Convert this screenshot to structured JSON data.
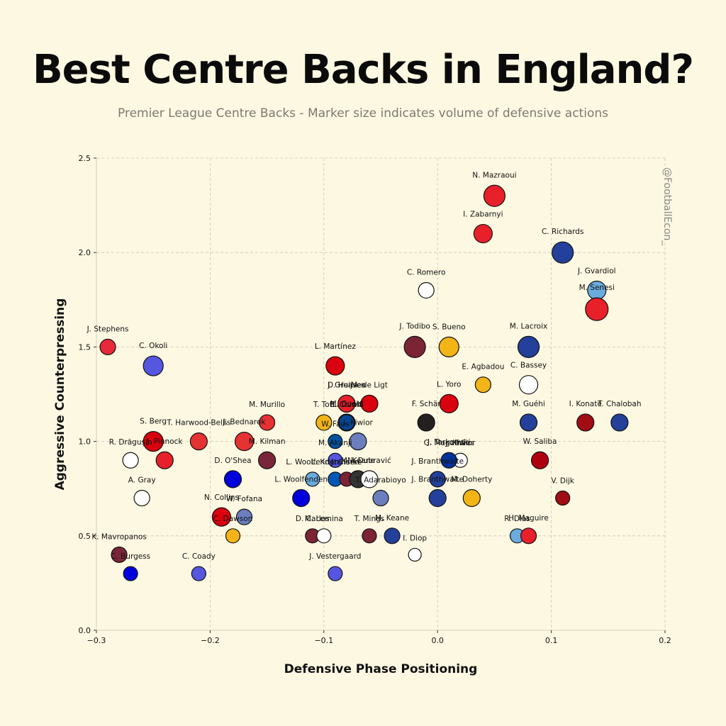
{
  "header": {
    "title": "Best Centre Backs in England?",
    "subtitle": "Premier League Centre Backs - Marker size indicates volume of defensive actions"
  },
  "watermark": "@FootballEcon_",
  "chart_data": {
    "type": "scatter",
    "xlabel": "Defensive Phase Positioning",
    "ylabel": "Aggressive Counterpressing",
    "xlim": [
      -0.3,
      0.2
    ],
    "ylim": [
      0.0,
      2.5
    ],
    "xticks": [
      "−0.3",
      "−0.2",
      "−0.1",
      "0.0",
      "0.1",
      "0.2"
    ],
    "xtick_values": [
      -0.3,
      -0.2,
      -0.1,
      0.0,
      0.1,
      0.2
    ],
    "yticks": [
      "0.0",
      "0.5",
      "1.0",
      "1.5",
      "2.0",
      "2.5"
    ],
    "ytick_values": [
      0.0,
      0.5,
      1.0,
      1.5,
      2.0,
      2.5
    ],
    "grid": true,
    "size_encoding": "volume of defensive actions",
    "points": [
      {
        "label": "N. Mazraoui",
        "x": 0.05,
        "y": 2.3,
        "size": 15,
        "color": "#e8202a"
      },
      {
        "label": "I. Zabarnyi",
        "x": 0.04,
        "y": 2.1,
        "size": 13,
        "color": "#e8202a"
      },
      {
        "label": "C. Richards",
        "x": 0.11,
        "y": 2.0,
        "size": 15,
        "color": "#23409a"
      },
      {
        "label": "C. Romero",
        "x": -0.01,
        "y": 1.8,
        "size": 11,
        "color": "#ffffff"
      },
      {
        "label": "J. Gvardiol",
        "x": 0.14,
        "y": 1.8,
        "size": 13,
        "color": "#6cabdd"
      },
      {
        "label": "M. Senesi",
        "x": 0.14,
        "y": 1.7,
        "size": 16,
        "color": "#e8202a"
      },
      {
        "label": "J. Stephens",
        "x": -0.29,
        "y": 1.5,
        "size": 11,
        "color": "#e7293a"
      },
      {
        "label": "C. Okoli",
        "x": -0.25,
        "y": 1.4,
        "size": 14,
        "color": "#5656e0"
      },
      {
        "label": "J. Todibo",
        "x": -0.02,
        "y": 1.5,
        "size": 15,
        "color": "#7a2434"
      },
      {
        "label": "S. Bueno",
        "x": 0.01,
        "y": 1.5,
        "size": 14,
        "color": "#f2b417"
      },
      {
        "label": "M. Lacroix",
        "x": 0.08,
        "y": 1.5,
        "size": 15,
        "color": "#23409a"
      },
      {
        "label": "L. Martínez",
        "x": -0.09,
        "y": 1.4,
        "size": 13,
        "color": "#da020e"
      },
      {
        "label": "E. Agbadou",
        "x": 0.04,
        "y": 1.3,
        "size": 11,
        "color": "#f2b417"
      },
      {
        "label": "C. Bassey",
        "x": 0.08,
        "y": 1.3,
        "size": 13,
        "color": "#ffffff"
      },
      {
        "label": "D. Huijsen",
        "x": -0.08,
        "y": 1.2,
        "size": 12,
        "color": "#da020e"
      },
      {
        "label": "M. de Ligt",
        "x": -0.06,
        "y": 1.2,
        "size": 12,
        "color": "#da020e"
      },
      {
        "label": "L. Yoro",
        "x": 0.01,
        "y": 1.2,
        "size": 13,
        "color": "#da020e"
      },
      {
        "label": "M. Murillo",
        "x": -0.15,
        "y": 1.1,
        "size": 11,
        "color": "#e53233"
      },
      {
        "label": "T. Toti",
        "x": -0.1,
        "y": 1.1,
        "size": 11,
        "color": "#f2b417"
      },
      {
        "label": "M. Guéhi",
        "x": -0.08,
        "y": 1.1,
        "size": 12,
        "color": "#1b45c9"
      },
      {
        "label": "J. Greaves",
        "x": -0.08,
        "y": 1.2,
        "size": 12,
        "color": "#e8202a"
      },
      {
        "label": "F. Schär",
        "x": -0.01,
        "y": 1.1,
        "size": 12,
        "color": "#241f20"
      },
      {
        "label": "M. Guéhi",
        "x": 0.08,
        "y": 1.1,
        "size": 12,
        "color": "#23409a"
      },
      {
        "label": "I. Konaté",
        "x": 0.13,
        "y": 1.1,
        "size": 12,
        "color": "#a00d14"
      },
      {
        "label": "T. Chalobah",
        "x": 0.16,
        "y": 1.1,
        "size": 12,
        "color": "#23409a"
      },
      {
        "label": "L. Dunk",
        "x": -0.08,
        "y": 1.1,
        "size": 11,
        "color": "#0057b8"
      },
      {
        "label": "B. Colwill",
        "x": -0.08,
        "y": 1.1,
        "size": 11,
        "color": "#034694"
      },
      {
        "label": "S. Berg",
        "x": -0.25,
        "y": 1.0,
        "size": 14,
        "color": "#da020e"
      },
      {
        "label": "T. Harwood-Bellis",
        "x": -0.21,
        "y": 1.0,
        "size": 12,
        "color": "#e53233"
      },
      {
        "label": "J. Bednarek",
        "x": -0.17,
        "y": 1.0,
        "size": 13,
        "color": "#e53233"
      },
      {
        "label": "M. Kilman",
        "x": -0.15,
        "y": 0.9,
        "size": 12,
        "color": "#7a263a"
      },
      {
        "label": "W. Faes",
        "x": -0.09,
        "y": 1.0,
        "size": 10,
        "color": "#0053a0"
      },
      {
        "label": "J. Kiwior",
        "x": -0.07,
        "y": 1.0,
        "size": 12,
        "color": "#6b7fbf"
      },
      {
        "label": "R. Drăgușin",
        "x": -0.27,
        "y": 0.9,
        "size": 11,
        "color": "#ffffff"
      },
      {
        "label": "J. Pinnock",
        "x": -0.24,
        "y": 0.9,
        "size": 12,
        "color": "#e8202a"
      },
      {
        "label": "J. Kiwior",
        "x": 0.02,
        "y": 0.9,
        "size": 10,
        "color": "#ffffff"
      },
      {
        "label": "G. Magalhães",
        "x": 0.01,
        "y": 0.9,
        "size": 10,
        "color": "#ef0107"
      },
      {
        "label": "J. Tarkowski",
        "x": 0.01,
        "y": 0.9,
        "size": 11,
        "color": "#003399"
      },
      {
        "label": "W. Saliba",
        "x": 0.09,
        "y": 0.9,
        "size": 12,
        "color": "#b0000f"
      },
      {
        "label": "D. O'Shea",
        "x": -0.18,
        "y": 0.8,
        "size": 12,
        "color": "#0000dd"
      },
      {
        "label": "M. Akanji",
        "x": -0.09,
        "y": 0.9,
        "size": 10,
        "color": "#5656e0"
      },
      {
        "label": "L. Kristensen",
        "x": -0.09,
        "y": 0.8,
        "size": 10,
        "color": "#0057b8"
      },
      {
        "label": "J. Clarke",
        "x": -0.08,
        "y": 0.8,
        "size": 10,
        "color": "#7a2434"
      },
      {
        "label": "M. Keane",
        "x": -0.07,
        "y": 0.8,
        "size": 12,
        "color": "#333333"
      },
      {
        "label": "N. Dubravić",
        "x": -0.06,
        "y": 0.8,
        "size": 12,
        "color": "#ffffff"
      },
      {
        "label": "A. Gray",
        "x": -0.26,
        "y": 0.7,
        "size": 11,
        "color": "#ffffff"
      },
      {
        "label": "L. Woolfenden",
        "x": -0.11,
        "y": 0.8,
        "size": 10,
        "color": "#6cabdd"
      },
      {
        "label": "T. Adarabioyo",
        "x": -0.05,
        "y": 0.7,
        "size": 11,
        "color": "#6b7fbf"
      },
      {
        "label": "J. Branthwaite",
        "x": 0.0,
        "y": 0.8,
        "size": 11,
        "color": "#23409a"
      },
      {
        "label": "J. Branthwaite",
        "x": 0.0,
        "y": 0.7,
        "size": 12,
        "color": "#23409a"
      },
      {
        "label": "M. Doherty",
        "x": 0.03,
        "y": 0.7,
        "size": 12,
        "color": "#f2b417"
      },
      {
        "label": "V. Dijk",
        "x": 0.11,
        "y": 0.7,
        "size": 10,
        "color": "#a00d14"
      },
      {
        "label": "N. Collins",
        "x": -0.19,
        "y": 0.6,
        "size": 13,
        "color": "#da020e"
      },
      {
        "label": "W. Fofana",
        "x": -0.17,
        "y": 0.6,
        "size": 11,
        "color": "#6b7fbf"
      },
      {
        "label": "C. Dawson",
        "x": -0.18,
        "y": 0.5,
        "size": 10,
        "color": "#f2b417"
      },
      {
        "label": "L. Woolfenden",
        "x": -0.12,
        "y": 0.7,
        "size": 12,
        "color": "#0000dd"
      },
      {
        "label": "D. Carlos",
        "x": -0.11,
        "y": 0.5,
        "size": 10,
        "color": "#7a2434"
      },
      {
        "label": "M. Lemina",
        "x": -0.1,
        "y": 0.5,
        "size": 10,
        "color": "#ffffff"
      },
      {
        "label": "T. Mings",
        "x": -0.06,
        "y": 0.5,
        "size": 10,
        "color": "#7a2434"
      },
      {
        "label": "M. Keane",
        "x": -0.04,
        "y": 0.5,
        "size": 11,
        "color": "#23409a"
      },
      {
        "label": "I. Diop",
        "x": -0.02,
        "y": 0.4,
        "size": 9,
        "color": "#ffffff"
      },
      {
        "label": "R. Dias",
        "x": 0.07,
        "y": 0.5,
        "size": 10,
        "color": "#6cabdd"
      },
      {
        "label": "H. Maguire",
        "x": 0.08,
        "y": 0.5,
        "size": 11,
        "color": "#e8202a"
      },
      {
        "label": "K. Mavropanos",
        "x": -0.28,
        "y": 0.4,
        "size": 11,
        "color": "#7a263a"
      },
      {
        "label": "C. Burgess",
        "x": -0.27,
        "y": 0.3,
        "size": 10,
        "color": "#0000dd"
      },
      {
        "label": "C. Coady",
        "x": -0.21,
        "y": 0.3,
        "size": 10,
        "color": "#5656e0"
      },
      {
        "label": "J. Vestergaard",
        "x": -0.09,
        "y": 0.3,
        "size": 10,
        "color": "#5656e0"
      }
    ]
  }
}
